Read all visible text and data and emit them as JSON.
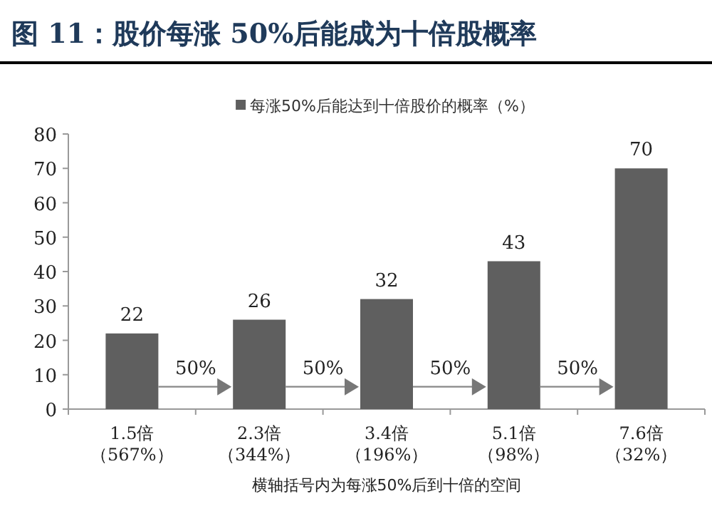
{
  "chart_data": {
    "type": "bar",
    "title": "图 11：股价每涨 50%后能成为十倍股概率",
    "categories": [
      "1.5倍（567%）",
      "2.3倍（344%）",
      "3.4倍（196%）",
      "5.1倍（98%）",
      "7.6倍（32%）"
    ],
    "series": [
      {
        "name": "每涨50%后能达到十倍股价的概率（%）",
        "color": "#5f5f5f",
        "values": [
          22,
          26,
          32,
          43,
          70
        ]
      }
    ],
    "ylim": [
      0,
      80
    ],
    "yticks": [
      0,
      10,
      20,
      30,
      40,
      50,
      60,
      70,
      80
    ],
    "data_labels": true,
    "legend": "top",
    "grid": false,
    "annotations": [
      "50%",
      "50%",
      "50%",
      "50%",
      "横轴括号内为每涨50%后到十倍的空间"
    ]
  }
}
